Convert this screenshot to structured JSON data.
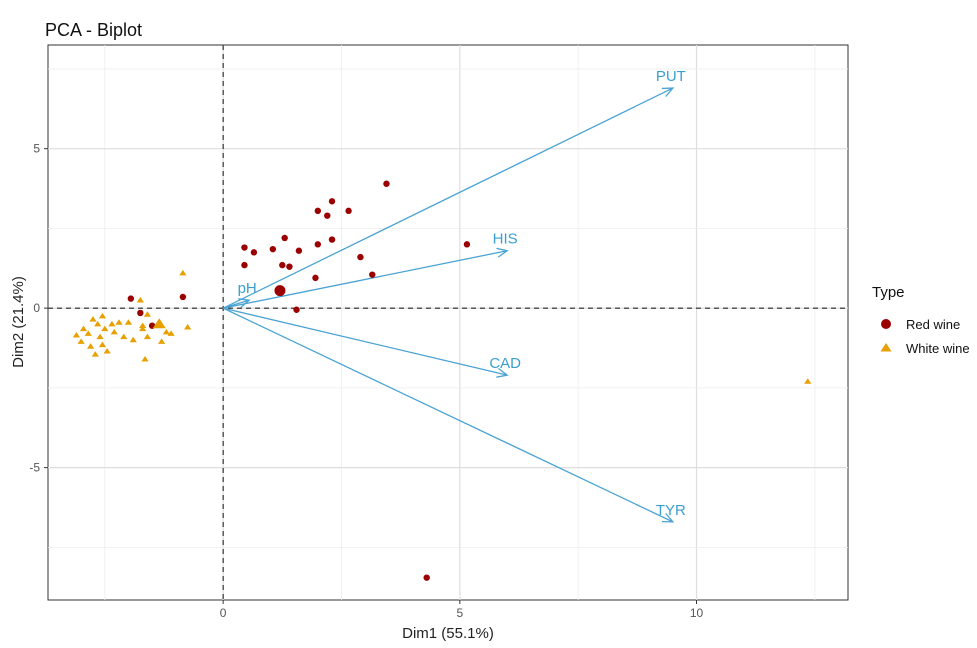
{
  "chart_data": {
    "type": "scatter",
    "subtype": "pca-biplot",
    "title": "PCA - Biplot",
    "xlabel": "Dim1 (55.1%)",
    "ylabel": "Dim2 (21.4%)",
    "xlim": [
      -3.7,
      13.2
    ],
    "ylim": [
      -9.15,
      8.25
    ],
    "x_ticks": [
      0,
      5,
      10
    ],
    "y_ticks": [
      -5,
      0,
      5
    ],
    "grid": true,
    "reference_lines": {
      "x": 0,
      "y": 0,
      "style": "dashed"
    },
    "legend": {
      "title": "Type",
      "placement": "right",
      "entries": [
        {
          "label": "Red wine",
          "shape": "circle",
          "color": "#9b0000"
        },
        {
          "label": "White wine",
          "shape": "triangle",
          "color": "#e8a000"
        }
      ]
    },
    "colors": {
      "red": "#9b0000",
      "white": "#e8a000",
      "arrows": "#4aa3d3"
    },
    "series": [
      {
        "name": "Red wine",
        "shape": "circle",
        "points": [
          [
            0.45,
            1.9
          ],
          [
            0.65,
            1.75
          ],
          [
            0.45,
            1.35
          ],
          [
            1.05,
            1.85
          ],
          [
            1.3,
            2.2
          ],
          [
            1.6,
            1.8
          ],
          [
            2.0,
            2.0
          ],
          [
            2.3,
            2.15
          ],
          [
            2.0,
            3.05
          ],
          [
            2.2,
            2.9
          ],
          [
            2.3,
            3.35
          ],
          [
            2.65,
            3.05
          ],
          [
            3.45,
            3.9
          ],
          [
            2.9,
            1.6
          ],
          [
            3.15,
            1.05
          ],
          [
            1.25,
            1.35
          ],
          [
            1.4,
            1.3
          ],
          [
            1.95,
            0.95
          ],
          [
            1.2,
            0.55
          ],
          [
            1.55,
            -0.05
          ],
          [
            5.15,
            2.0
          ],
          [
            -1.95,
            0.3
          ],
          [
            -1.75,
            -0.15
          ],
          [
            -1.5,
            -0.55
          ],
          [
            -0.85,
            0.35
          ],
          [
            4.3,
            -8.45
          ]
        ],
        "centroid": [
          1.2,
          0.55
        ]
      },
      {
        "name": "White wine",
        "shape": "triangle",
        "points": [
          [
            -3.1,
            -0.85
          ],
          [
            -3.0,
            -1.05
          ],
          [
            -2.95,
            -0.65
          ],
          [
            -2.85,
            -0.8
          ],
          [
            -2.8,
            -1.2
          ],
          [
            -2.75,
            -0.35
          ],
          [
            -2.7,
            -1.45
          ],
          [
            -2.65,
            -0.5
          ],
          [
            -2.6,
            -0.9
          ],
          [
            -2.55,
            -0.25
          ],
          [
            -2.55,
            -1.15
          ],
          [
            -2.5,
            -0.65
          ],
          [
            -2.45,
            -1.35
          ],
          [
            -2.35,
            -0.5
          ],
          [
            -2.3,
            -0.75
          ],
          [
            -2.2,
            -0.45
          ],
          [
            -2.1,
            -0.9
          ],
          [
            -2.0,
            -0.45
          ],
          [
            -1.9,
            -1.0
          ],
          [
            -1.75,
            0.25
          ],
          [
            -1.7,
            -0.55
          ],
          [
            -1.65,
            -1.6
          ],
          [
            -1.6,
            -0.2
          ],
          [
            -1.6,
            -0.9
          ],
          [
            -1.3,
            -1.05
          ],
          [
            -1.2,
            -0.75
          ],
          [
            -1.1,
            -0.8
          ],
          [
            -0.85,
            1.1
          ],
          [
            -0.75,
            -0.6
          ],
          [
            -1.7,
            -0.65
          ],
          [
            12.35,
            -2.3
          ]
        ],
        "centroid": [
          -1.35,
          -0.5
        ]
      }
    ],
    "variables": [
      {
        "label": "PUT",
        "x": 9.5,
        "y": 6.9
      },
      {
        "label": "HIS",
        "x": 6.0,
        "y": 1.8
      },
      {
        "label": "pH",
        "x": 0.55,
        "y": 0.25
      },
      {
        "label": "CAD",
        "x": 6.0,
        "y": -2.1
      },
      {
        "label": "TYR",
        "x": 9.5,
        "y": -6.7
      }
    ]
  }
}
